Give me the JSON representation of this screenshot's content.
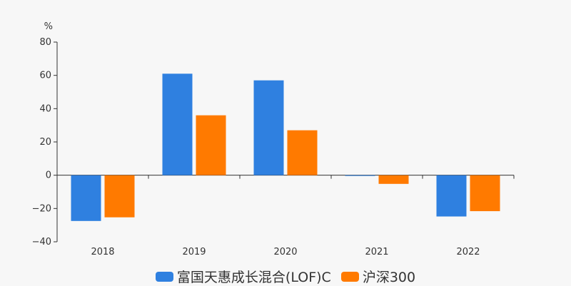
{
  "chart_data": {
    "type": "bar",
    "ylabel": "%",
    "categories": [
      "2018",
      "2019",
      "2020",
      "2021",
      "2022"
    ],
    "series": [
      {
        "name": "富国天惠成长混合(LOF)C",
        "color": "#2f80e0",
        "values": [
          -27.5,
          61,
          57,
          0,
          -24.8
        ]
      },
      {
        "name": "沪深300",
        "color": "#ff7a00",
        "values": [
          -25.3,
          36,
          27,
          -5.2,
          -21.6
        ]
      }
    ],
    "ylim": [
      -40,
      80
    ],
    "yticks": [
      80,
      60,
      40,
      20,
      0,
      -20,
      -40
    ],
    "grid": false,
    "legend": "bottom-center"
  }
}
